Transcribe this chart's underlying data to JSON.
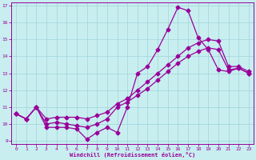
{
  "xlabel": "Windchill (Refroidissement éolien,°C)",
  "xlim": [
    -0.5,
    23.5
  ],
  "ylim": [
    8.8,
    17.2
  ],
  "yticks": [
    9,
    10,
    11,
    12,
    13,
    14,
    15,
    16,
    17
  ],
  "xticks": [
    0,
    1,
    2,
    3,
    4,
    5,
    6,
    7,
    8,
    9,
    10,
    11,
    12,
    13,
    14,
    15,
    16,
    17,
    18,
    19,
    20,
    21,
    22,
    23
  ],
  "bg_color": "#c8eef0",
  "line_color": "#990099",
  "grid_color": "#9fd4d8",
  "line1_y": [
    10.6,
    10.3,
    11.0,
    9.8,
    9.8,
    9.8,
    9.7,
    9.1,
    9.5,
    9.8,
    9.5,
    11.0,
    13.0,
    13.4,
    14.4,
    15.6,
    16.9,
    16.7,
    15.1,
    14.4,
    13.2,
    13.1,
    13.3,
    13.0
  ],
  "line2_y": [
    10.6,
    10.3,
    11.0,
    10.0,
    10.1,
    10.0,
    9.9,
    9.8,
    10.0,
    10.3,
    11.0,
    11.3,
    11.7,
    12.1,
    12.6,
    13.1,
    13.6,
    14.0,
    14.3,
    14.5,
    14.4,
    13.2,
    13.3,
    13.0
  ],
  "line3_y": [
    10.6,
    10.3,
    11.0,
    10.3,
    10.4,
    10.4,
    10.4,
    10.3,
    10.5,
    10.7,
    11.2,
    11.5,
    12.0,
    12.5,
    13.0,
    13.5,
    14.0,
    14.5,
    14.8,
    15.0,
    14.9,
    13.4,
    13.4,
    13.1
  ],
  "marker": "D",
  "markersize": 2.5,
  "linewidth": 0.9
}
